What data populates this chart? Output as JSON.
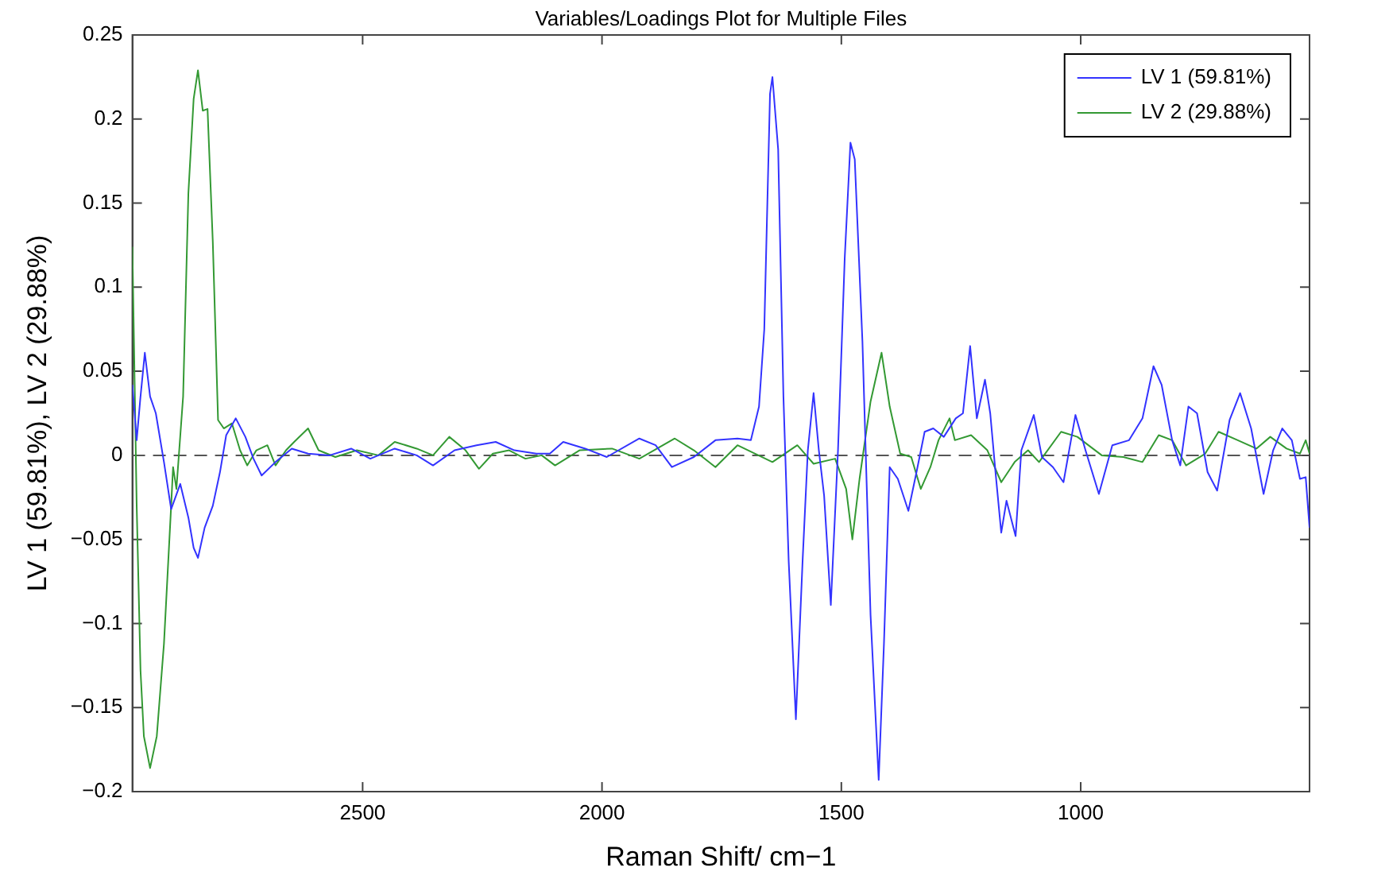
{
  "chart_data": {
    "type": "line",
    "title": "Variables/Loadings Plot for Multiple Files",
    "xlabel": "Raman Shift/ cm−1",
    "ylabel": "LV 1 (59.81%), LV 2 (29.88%)",
    "xlim": [
      2981,
      522
    ],
    "xticks": [
      2500,
      2000,
      1500,
      1000
    ],
    "ylim": [
      -0.2,
      0.25
    ],
    "yticks": [
      {
        "value": -0.2,
        "label": "−0.2"
      },
      {
        "value": -0.15,
        "label": "−0.15"
      },
      {
        "value": -0.1,
        "label": "−0.1"
      },
      {
        "value": -0.05,
        "label": "−0.05"
      },
      0,
      0.05,
      0.1,
      0.15,
      0.2,
      0.25
    ],
    "grid": false,
    "legend": "top right",
    "marker": "none",
    "line_style": "solid",
    "ref_lines": [
      {
        "axis": "y",
        "value": 0,
        "color": "#555555",
        "line_style": "dashed"
      }
    ],
    "series": [
      {
        "name": "LV 1 (59.81%)",
        "color": "#3333ff",
        "x": [
          2981,
          2972,
          2964,
          2955,
          2944,
          2932,
          2915,
          2900,
          2881,
          2864,
          2853,
          2844,
          2830,
          2813,
          2798,
          2785,
          2765,
          2745,
          2728,
          2711,
          2682,
          2648,
          2614,
          2569,
          2524,
          2484,
          2433,
          2387,
          2353,
          2308,
          2262,
          2222,
          2183,
          2137,
          2109,
          2081,
          2035,
          1990,
          1922,
          1888,
          1854,
          1808,
          1763,
          1717,
          1689,
          1672,
          1661,
          1649,
          1644,
          1632,
          1621,
          1610,
          1595,
          1581,
          1570,
          1558,
          1547,
          1536,
          1522,
          1507,
          1493,
          1481,
          1472,
          1456,
          1439,
          1422,
          1411,
          1399,
          1382,
          1360,
          1343,
          1326,
          1308,
          1286,
          1261,
          1246,
          1231,
          1217,
          1200,
          1189,
          1178,
          1166,
          1155,
          1136,
          1124,
          1098,
          1081,
          1058,
          1036,
          1011,
          990,
          962,
          934,
          899,
          871,
          848,
          831,
          809,
          792,
          775,
          757,
          735,
          715,
          689,
          667,
          644,
          618,
          598,
          579,
          559,
          542,
          530,
          522
        ],
        "values": [
          0.042,
          0.009,
          0.035,
          0.061,
          0.035,
          0.025,
          -0.004,
          -0.032,
          -0.017,
          -0.037,
          -0.055,
          -0.061,
          -0.043,
          -0.03,
          -0.01,
          0.012,
          0.022,
          0.011,
          -0.002,
          -0.012,
          -0.004,
          0.004,
          0.001,
          0,
          0.004,
          -0.002,
          0.004,
          0,
          -0.006,
          0.003,
          0.006,
          0.008,
          0.003,
          0.001,
          0.001,
          0.008,
          0.004,
          -0.001,
          0.01,
          0.006,
          -0.007,
          -0.001,
          0.009,
          0.01,
          0.009,
          0.029,
          0.075,
          0.215,
          0.225,
          0.182,
          0.035,
          -0.063,
          -0.157,
          -0.063,
          0.003,
          0.037,
          0.003,
          -0.024,
          -0.089,
          0.003,
          0.117,
          0.186,
          0.176,
          0.068,
          -0.095,
          -0.193,
          -0.112,
          -0.007,
          -0.014,
          -0.033,
          -0.01,
          0.014,
          0.016,
          0.011,
          0.022,
          0.025,
          0.065,
          0.022,
          0.045,
          0.025,
          -0.01,
          -0.046,
          -0.027,
          -0.048,
          0.003,
          0.024,
          -0.001,
          -0.007,
          -0.016,
          0.024,
          0.003,
          -0.023,
          0.006,
          0.009,
          0.022,
          0.053,
          0.042,
          0.009,
          -0.006,
          0.029,
          0.025,
          -0.01,
          -0.021,
          0.021,
          0.037,
          0.016,
          -0.023,
          0.003,
          0.016,
          0.009,
          -0.014,
          -0.013,
          -0.043
        ]
      },
      {
        "name": "LV 2 (29.88%)",
        "color": "#339933",
        "x": [
          2981,
          2972,
          2964,
          2957,
          2944,
          2930,
          2915,
          2900,
          2896,
          2889,
          2875,
          2864,
          2853,
          2844,
          2834,
          2824,
          2813,
          2802,
          2790,
          2773,
          2756,
          2741,
          2722,
          2699,
          2682,
          2660,
          2643,
          2614,
          2592,
          2557,
          2512,
          2467,
          2433,
          2387,
          2353,
          2319,
          2285,
          2257,
          2228,
          2194,
          2160,
          2126,
          2098,
          2047,
          1979,
          1922,
          1848,
          1808,
          1763,
          1717,
          1644,
          1592,
          1558,
          1513,
          1490,
          1477,
          1462,
          1439,
          1416,
          1399,
          1377,
          1354,
          1334,
          1314,
          1297,
          1274,
          1263,
          1229,
          1195,
          1166,
          1138,
          1110,
          1087,
          1041,
          1007,
          956,
          911,
          871,
          837,
          809,
          780,
          740,
          712,
          672,
          633,
          604,
          570,
          542,
          530,
          522
        ],
        "values": [
          0.124,
          -0.03,
          -0.128,
          -0.167,
          -0.186,
          -0.167,
          -0.112,
          -0.03,
          -0.007,
          -0.02,
          0.035,
          0.156,
          0.212,
          0.229,
          0.205,
          0.206,
          0.127,
          0.021,
          0.016,
          0.019,
          0.003,
          -0.006,
          0.003,
          0.006,
          -0.006,
          0.003,
          0.008,
          0.016,
          0.003,
          -0.001,
          0.003,
          0,
          0.008,
          0.004,
          0,
          0.011,
          0.003,
          -0.008,
          0.001,
          0.003,
          -0.002,
          0,
          -0.006,
          0.003,
          0.004,
          -0.002,
          0.01,
          0.003,
          -0.007,
          0.006,
          -0.004,
          0.006,
          -0.005,
          -0.002,
          -0.02,
          -0.05,
          -0.014,
          0.032,
          0.061,
          0.029,
          0.001,
          -0.001,
          -0.02,
          -0.007,
          0.009,
          0.022,
          0.009,
          0.012,
          0.003,
          -0.016,
          -0.004,
          0.003,
          -0.004,
          0.014,
          0.011,
          0,
          -0.001,
          -0.004,
          0.012,
          0.009,
          -0.006,
          0.001,
          0.014,
          0.009,
          0.004,
          0.011,
          0.004,
          0.001,
          0.009,
          0.001
        ]
      }
    ]
  }
}
